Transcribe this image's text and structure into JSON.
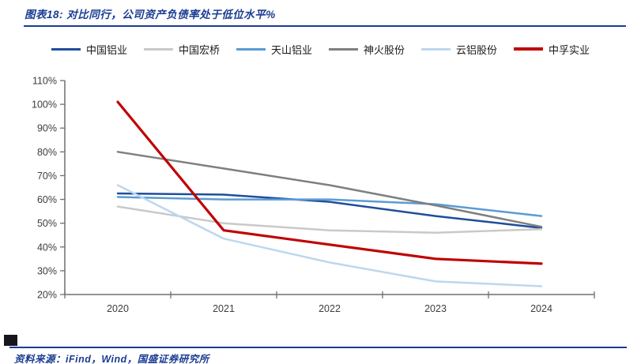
{
  "title": "图表18: 对比同行，公司资产负债率处于低位水平%",
  "footer": {
    "text": "资料来源：iFind，Wind，国盛证券研究所"
  },
  "colors": {
    "accent_navy": "#1B3C94",
    "axis_line": "#6F6F6F",
    "tick_label": "#3D3D3D"
  },
  "chart_data": {
    "type": "line",
    "title": "图表18: 对比同行，公司资产负债率处于低位水平%",
    "xlabel": "",
    "ylabel": "",
    "x": [
      "2020",
      "2021",
      "2022",
      "2023",
      "2024"
    ],
    "ylim": [
      20,
      110
    ],
    "y_tick_step": 10,
    "y_tick_labels": [
      "110%",
      "100%",
      "90%",
      "80%",
      "70%",
      "60%",
      "50%",
      "40%",
      "30%",
      "20%"
    ],
    "grid": false,
    "legend_position": "top",
    "series": [
      {
        "name": "中国铝业",
        "color": "#1F4E9B",
        "line_width": 2.5,
        "values": [
          62.5,
          62,
          59,
          53,
          48
        ]
      },
      {
        "name": "中国宏桥",
        "color": "#C9C9C9",
        "line_width": 2.5,
        "values": [
          57,
          50,
          47,
          46,
          47.5
        ]
      },
      {
        "name": "天山铝业",
        "color": "#5B9BD5",
        "line_width": 2.5,
        "values": [
          61,
          60,
          60,
          58,
          53
        ]
      },
      {
        "name": "神火股份",
        "color": "#7F7F7F",
        "line_width": 2.5,
        "values": [
          80,
          73,
          66,
          57.5,
          48.5
        ]
      },
      {
        "name": "云铝股份",
        "color": "#BDD7EE",
        "line_width": 2.5,
        "values": [
          66,
          43.5,
          33.5,
          25.5,
          23.5
        ]
      },
      {
        "name": "中孚实业",
        "color": "#C00000",
        "line_width": 3.2,
        "values": [
          101,
          47,
          41,
          35,
          33
        ]
      }
    ]
  }
}
